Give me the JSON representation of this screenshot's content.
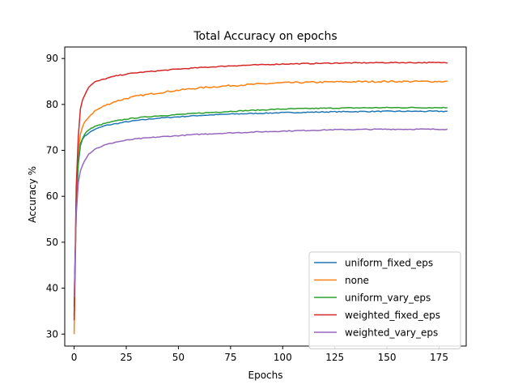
{
  "chart_data": {
    "type": "line",
    "title": "Total Accuracy on epochs",
    "xlabel": "Epochs",
    "ylabel": "Accuracy %",
    "xlim": [
      -4.5,
      188.0
    ],
    "ylim": [
      27.4,
      92.5
    ],
    "xticks": [
      0,
      25,
      50,
      75,
      100,
      125,
      150,
      175
    ],
    "yticks": [
      30,
      40,
      50,
      60,
      70,
      80,
      90
    ],
    "grid": false,
    "legend_position": "lower-right",
    "series": [
      {
        "name": "uniform_fixed_eps",
        "color": "#1f77b4",
        "points": [
          [
            0,
            36
          ],
          [
            1,
            57
          ],
          [
            2,
            67
          ],
          [
            3,
            71
          ],
          [
            4,
            72.5
          ],
          [
            5,
            73
          ],
          [
            7,
            73.8
          ],
          [
            10,
            74.6
          ],
          [
            15,
            75.4
          ],
          [
            20,
            75.8
          ],
          [
            25,
            76.2
          ],
          [
            30,
            76.5
          ],
          [
            40,
            77.0
          ],
          [
            50,
            77.3
          ],
          [
            60,
            77.6
          ],
          [
            75,
            77.9
          ],
          [
            100,
            78.2
          ],
          [
            125,
            78.4
          ],
          [
            150,
            78.5
          ],
          [
            179,
            78.5
          ]
        ]
      },
      {
        "name": "none",
        "color": "#ff7f0e",
        "points": [
          [
            0,
            30
          ],
          [
            1,
            57
          ],
          [
            2,
            70
          ],
          [
            3,
            73.5
          ],
          [
            4,
            75
          ],
          [
            5,
            76
          ],
          [
            7,
            77.3
          ],
          [
            10,
            78.6
          ],
          [
            15,
            79.8
          ],
          [
            20,
            80.7
          ],
          [
            25,
            81.3
          ],
          [
            30,
            81.8
          ],
          [
            40,
            82.5
          ],
          [
            50,
            83.1
          ],
          [
            60,
            83.6
          ],
          [
            75,
            84.1
          ],
          [
            100,
            84.7
          ],
          [
            125,
            84.9
          ],
          [
            150,
            85.0
          ],
          [
            179,
            85.0
          ]
        ]
      },
      {
        "name": "uniform_vary_eps",
        "color": "#2ca02c",
        "points": [
          [
            0,
            34
          ],
          [
            1,
            58
          ],
          [
            2,
            68
          ],
          [
            3,
            71.5
          ],
          [
            4,
            72.5
          ],
          [
            5,
            73.5
          ],
          [
            7,
            74.5
          ],
          [
            10,
            75.2
          ],
          [
            15,
            75.9
          ],
          [
            20,
            76.4
          ],
          [
            25,
            76.8
          ],
          [
            30,
            77.1
          ],
          [
            40,
            77.5
          ],
          [
            50,
            77.8
          ],
          [
            60,
            78.1
          ],
          [
            75,
            78.5
          ],
          [
            100,
            79.0
          ],
          [
            125,
            79.2
          ],
          [
            150,
            79.3
          ],
          [
            179,
            79.3
          ]
        ]
      },
      {
        "name": "weighted_fixed_eps",
        "color": "#d62728",
        "points": [
          [
            0,
            33
          ],
          [
            1,
            62
          ],
          [
            2,
            73
          ],
          [
            3,
            79
          ],
          [
            4,
            81
          ],
          [
            5,
            82
          ],
          [
            7,
            83.8
          ],
          [
            10,
            84.9
          ],
          [
            15,
            85.6
          ],
          [
            20,
            86.2
          ],
          [
            25,
            86.6
          ],
          [
            30,
            86.9
          ],
          [
            40,
            87.3
          ],
          [
            50,
            87.7
          ],
          [
            60,
            88.0
          ],
          [
            75,
            88.4
          ],
          [
            100,
            88.8
          ],
          [
            125,
            89.0
          ],
          [
            150,
            89.1
          ],
          [
            179,
            89.1
          ]
        ]
      },
      {
        "name": "weighted_vary_eps",
        "color": "#9467bd",
        "points": [
          [
            0,
            38
          ],
          [
            1,
            56
          ],
          [
            2,
            63
          ],
          [
            3,
            65.5
          ],
          [
            4,
            66.8
          ],
          [
            5,
            67.8
          ],
          [
            7,
            69.2
          ],
          [
            10,
            70.3
          ],
          [
            15,
            71.2
          ],
          [
            20,
            71.8
          ],
          [
            25,
            72.2
          ],
          [
            30,
            72.5
          ],
          [
            40,
            72.9
          ],
          [
            50,
            73.2
          ],
          [
            60,
            73.5
          ],
          [
            75,
            73.8
          ],
          [
            100,
            74.2
          ],
          [
            125,
            74.5
          ],
          [
            150,
            74.6
          ],
          [
            179,
            74.6
          ]
        ]
      }
    ]
  }
}
